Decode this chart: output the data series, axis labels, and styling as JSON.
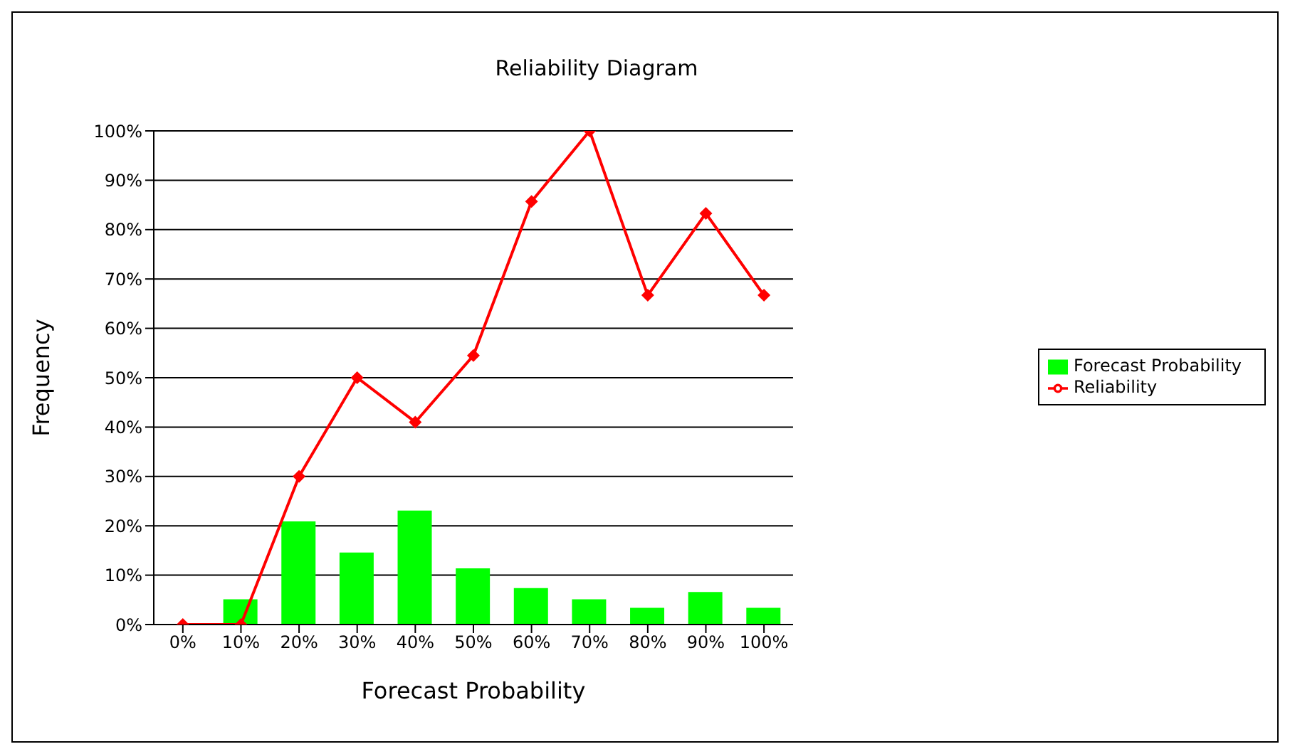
{
  "chart_data": {
    "type": "bar",
    "title": "Reliability Diagram",
    "xlabel": "Forecast Probability",
    "ylabel": "Frequency",
    "categories": [
      "0%",
      "10%",
      "20%",
      "30%",
      "40%",
      "50%",
      "60%",
      "70%",
      "80%",
      "90%",
      "100%"
    ],
    "series": [
      {
        "name": "Forecast Probability",
        "color": "#00ff00",
        "values": [
          0,
          5.1,
          20.9,
          14.6,
          23.1,
          11.4,
          7.4,
          5.1,
          3.4,
          6.6,
          3.4
        ]
      },
      {
        "name": "Reliability",
        "type": "line",
        "color": "#ff0000",
        "marker": "diamond",
        "values": [
          0,
          0,
          30,
          50,
          41,
          54.5,
          85.7,
          100,
          66.7,
          83.3,
          66.7
        ]
      }
    ],
    "ylim": [
      0,
      100
    ],
    "yticks": [
      {
        "value": 0,
        "label": "0%"
      },
      {
        "value": 10,
        "label": "10%"
      },
      {
        "value": 20,
        "label": "20%"
      },
      {
        "value": 30,
        "label": "30%"
      },
      {
        "value": 40,
        "label": "40%"
      },
      {
        "value": 50,
        "label": "50%"
      },
      {
        "value": 60,
        "label": "60%"
      },
      {
        "value": 70,
        "label": "70%"
      },
      {
        "value": 80,
        "label": "80%"
      },
      {
        "value": 90,
        "label": "90%"
      },
      {
        "value": 100,
        "label": "100%"
      }
    ],
    "grid": "y",
    "legend": "right"
  }
}
